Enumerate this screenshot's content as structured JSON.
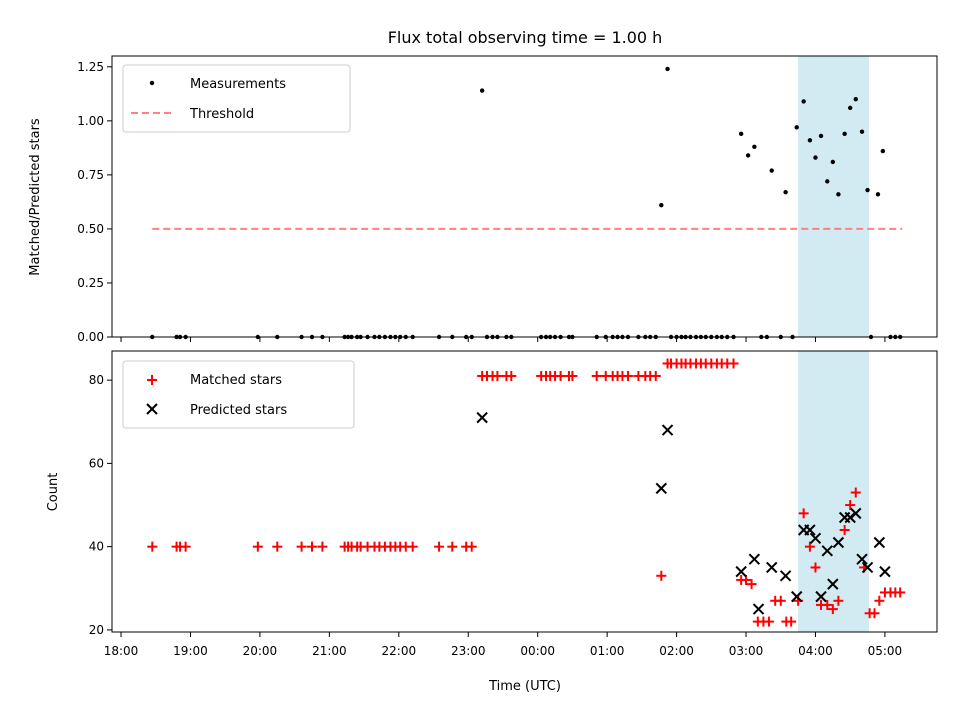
{
  "title": "Flux total observing time = 1.00 h",
  "chart_data": [
    {
      "type": "scatter",
      "name": "top",
      "ylabel": "Matched/Predicted stars",
      "ylim": [
        0,
        1.3
      ],
      "yticks": [
        0.0,
        0.25,
        0.5,
        0.75,
        1.0,
        1.25
      ],
      "ytick_labels": [
        "0.00",
        "0.25",
        "0.50",
        "0.75",
        "1.00",
        "1.25"
      ],
      "legend": {
        "placement": "upper-left",
        "entries": [
          "Measurements",
          "Threshold"
        ]
      },
      "threshold": {
        "label": "Threshold",
        "value": 0.5,
        "x_start": 18.45,
        "x_end": 29.25,
        "color": "#ff8080"
      },
      "shaded_region": {
        "x_start": 27.75,
        "x_end": 28.77,
        "color": "#add8e6"
      },
      "series": [
        {
          "name": "Measurements",
          "marker": "dot",
          "color": "#000000",
          "points": [
            [
              18.45,
              0
            ],
            [
              18.8,
              0
            ],
            [
              18.85,
              0
            ],
            [
              18.93,
              0
            ],
            [
              19.97,
              0
            ],
            [
              20.25,
              0
            ],
            [
              20.6,
              0
            ],
            [
              20.75,
              0
            ],
            [
              20.9,
              0
            ],
            [
              21.22,
              0
            ],
            [
              21.27,
              0
            ],
            [
              21.32,
              0
            ],
            [
              21.4,
              0
            ],
            [
              21.45,
              0
            ],
            [
              21.55,
              0
            ],
            [
              21.65,
              0
            ],
            [
              21.72,
              0
            ],
            [
              21.8,
              0
            ],
            [
              21.88,
              0
            ],
            [
              21.95,
              0
            ],
            [
              22.02,
              0
            ],
            [
              22.1,
              0
            ],
            [
              22.2,
              0
            ],
            [
              22.58,
              0
            ],
            [
              22.77,
              0
            ],
            [
              22.97,
              0
            ],
            [
              23.05,
              0
            ],
            [
              23.2,
              1.14
            ],
            [
              23.27,
              0
            ],
            [
              23.35,
              0
            ],
            [
              23.42,
              0
            ],
            [
              23.55,
              0
            ],
            [
              23.62,
              0
            ],
            [
              24.05,
              0
            ],
            [
              24.12,
              0
            ],
            [
              24.18,
              0
            ],
            [
              24.25,
              0
            ],
            [
              24.33,
              0
            ],
            [
              24.45,
              0
            ],
            [
              24.5,
              0
            ],
            [
              24.85,
              0
            ],
            [
              24.98,
              0
            ],
            [
              25.08,
              0
            ],
            [
              25.15,
              0
            ],
            [
              25.22,
              0
            ],
            [
              25.3,
              0
            ],
            [
              25.45,
              0
            ],
            [
              25.55,
              0
            ],
            [
              25.62,
              0
            ],
            [
              25.7,
              0
            ],
            [
              25.78,
              0.61
            ],
            [
              25.87,
              1.24
            ],
            [
              25.92,
              0
            ],
            [
              26.0,
              0
            ],
            [
              26.07,
              0
            ],
            [
              26.13,
              0
            ],
            [
              26.2,
              0
            ],
            [
              26.28,
              0
            ],
            [
              26.35,
              0
            ],
            [
              26.42,
              0
            ],
            [
              26.5,
              0
            ],
            [
              26.58,
              0
            ],
            [
              26.65,
              0
            ],
            [
              26.73,
              0
            ],
            [
              26.82,
              0
            ],
            [
              26.93,
              0.94
            ],
            [
              27.03,
              0.84
            ],
            [
              27.12,
              0.88
            ],
            [
              27.22,
              0
            ],
            [
              27.3,
              0
            ],
            [
              27.37,
              0.77
            ],
            [
              27.5,
              0
            ],
            [
              27.57,
              0.67
            ],
            [
              27.67,
              0
            ],
            [
              27.73,
              0.97
            ],
            [
              27.83,
              1.09
            ],
            [
              27.92,
              0.91
            ],
            [
              28.0,
              0.83
            ],
            [
              28.08,
              0.93
            ],
            [
              28.17,
              0.72
            ],
            [
              28.25,
              0.81
            ],
            [
              28.33,
              0.66
            ],
            [
              28.42,
              0.94
            ],
            [
              28.5,
              1.06
            ],
            [
              28.58,
              1.1
            ],
            [
              28.67,
              0.95
            ],
            [
              28.75,
              0.68
            ],
            [
              28.8,
              0
            ],
            [
              28.9,
              0.66
            ],
            [
              28.97,
              0.86
            ],
            [
              29.08,
              0
            ],
            [
              29.15,
              0
            ],
            [
              29.22,
              0
            ]
          ]
        }
      ]
    },
    {
      "type": "scatter",
      "name": "bottom",
      "xlabel": "Time (UTC)",
      "ylabel": "Count",
      "ylim": [
        19.5,
        87
      ],
      "yticks": [
        20,
        40,
        60,
        80
      ],
      "ytick_labels": [
        "20",
        "40",
        "60",
        "80"
      ],
      "xlim": [
        17.87,
        29.75
      ],
      "xticks": [
        18,
        19,
        20,
        21,
        22,
        23,
        24,
        25,
        26,
        27,
        28,
        29
      ],
      "xtick_labels": [
        "18:00",
        "19:00",
        "20:00",
        "21:00",
        "22:00",
        "23:00",
        "00:00",
        "01:00",
        "02:00",
        "03:00",
        "04:00",
        "05:00"
      ],
      "legend": {
        "placement": "upper-left",
        "entries": [
          "Matched stars",
          "Predicted stars"
        ]
      },
      "shaded_region": {
        "x_start": 27.75,
        "x_end": 28.77,
        "color": "#add8e6"
      },
      "series": [
        {
          "name": "Matched stars",
          "marker": "plus",
          "color": "#ff0000",
          "points": [
            [
              18.45,
              40
            ],
            [
              18.8,
              40
            ],
            [
              18.85,
              40
            ],
            [
              18.93,
              40
            ],
            [
              19.97,
              40
            ],
            [
              20.25,
              40
            ],
            [
              20.6,
              40
            ],
            [
              20.75,
              40
            ],
            [
              20.9,
              40
            ],
            [
              21.22,
              40
            ],
            [
              21.27,
              40
            ],
            [
              21.32,
              40
            ],
            [
              21.4,
              40
            ],
            [
              21.45,
              40
            ],
            [
              21.55,
              40
            ],
            [
              21.65,
              40
            ],
            [
              21.72,
              40
            ],
            [
              21.8,
              40
            ],
            [
              21.88,
              40
            ],
            [
              21.95,
              40
            ],
            [
              22.02,
              40
            ],
            [
              22.1,
              40
            ],
            [
              22.2,
              40
            ],
            [
              22.58,
              40
            ],
            [
              22.77,
              40
            ],
            [
              22.97,
              40
            ],
            [
              23.05,
              40
            ],
            [
              23.2,
              81
            ],
            [
              23.27,
              81
            ],
            [
              23.35,
              81
            ],
            [
              23.42,
              81
            ],
            [
              23.55,
              81
            ],
            [
              23.62,
              81
            ],
            [
              24.05,
              81
            ],
            [
              24.12,
              81
            ],
            [
              24.18,
              81
            ],
            [
              24.25,
              81
            ],
            [
              24.33,
              81
            ],
            [
              24.45,
              81
            ],
            [
              24.5,
              81
            ],
            [
              24.85,
              81
            ],
            [
              24.98,
              81
            ],
            [
              25.08,
              81
            ],
            [
              25.15,
              81
            ],
            [
              25.22,
              81
            ],
            [
              25.3,
              81
            ],
            [
              25.45,
              81
            ],
            [
              25.55,
              81
            ],
            [
              25.62,
              81
            ],
            [
              25.7,
              81
            ],
            [
              25.78,
              33
            ],
            [
              25.87,
              84
            ],
            [
              25.92,
              84
            ],
            [
              26.0,
              84
            ],
            [
              26.07,
              84
            ],
            [
              26.13,
              84
            ],
            [
              26.2,
              84
            ],
            [
              26.28,
              84
            ],
            [
              26.35,
              84
            ],
            [
              26.42,
              84
            ],
            [
              26.5,
              84
            ],
            [
              26.58,
              84
            ],
            [
              26.65,
              84
            ],
            [
              26.73,
              84
            ],
            [
              26.82,
              84
            ],
            [
              26.93,
              32
            ],
            [
              27.0,
              32
            ],
            [
              27.08,
              31
            ],
            [
              27.17,
              22
            ],
            [
              27.25,
              22
            ],
            [
              27.33,
              22
            ],
            [
              27.42,
              27
            ],
            [
              27.5,
              27
            ],
            [
              27.58,
              22
            ],
            [
              27.65,
              22
            ],
            [
              27.75,
              27
            ],
            [
              27.83,
              48
            ],
            [
              27.92,
              40
            ],
            [
              28.0,
              35
            ],
            [
              28.08,
              26
            ],
            [
              28.17,
              26
            ],
            [
              28.25,
              25
            ],
            [
              28.33,
              27
            ],
            [
              28.42,
              44
            ],
            [
              28.5,
              50
            ],
            [
              28.58,
              53
            ],
            [
              28.7,
              35
            ],
            [
              28.78,
              24
            ],
            [
              28.85,
              24
            ],
            [
              28.92,
              27
            ],
            [
              29.0,
              29
            ],
            [
              29.08,
              29
            ],
            [
              29.15,
              29
            ],
            [
              29.22,
              29
            ]
          ]
        },
        {
          "name": "Predicted stars",
          "marker": "x",
          "color": "#000000",
          "points": [
            [
              23.2,
              71
            ],
            [
              25.78,
              54
            ],
            [
              25.87,
              68
            ],
            [
              26.93,
              34
            ],
            [
              27.12,
              37
            ],
            [
              27.18,
              25
            ],
            [
              27.37,
              35
            ],
            [
              27.57,
              33
            ],
            [
              27.73,
              28
            ],
            [
              27.83,
              44
            ],
            [
              27.92,
              44
            ],
            [
              28.0,
              42
            ],
            [
              28.08,
              28
            ],
            [
              28.17,
              39
            ],
            [
              28.25,
              31
            ],
            [
              28.33,
              41
            ],
            [
              28.42,
              47
            ],
            [
              28.5,
              47
            ],
            [
              28.58,
              48
            ],
            [
              28.67,
              37
            ],
            [
              28.75,
              35
            ],
            [
              28.92,
              41
            ],
            [
              29.0,
              34
            ]
          ]
        }
      ]
    }
  ]
}
